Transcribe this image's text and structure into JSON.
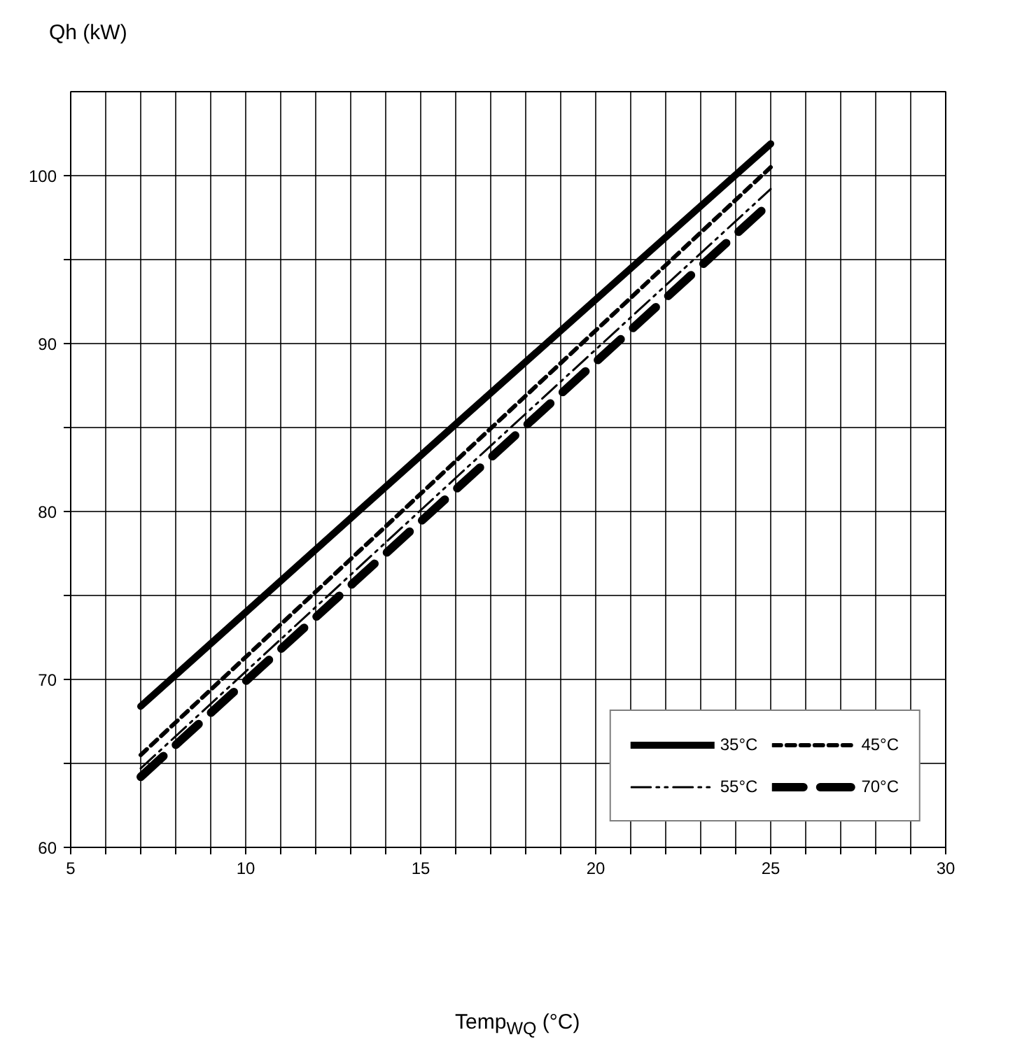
{
  "chart_data": {
    "type": "line",
    "annotations": [
      "Temp$_{WQ}$ (°C)"
    ],
    "ylabel": "Qh (kW)",
    "x": [
      7,
      16,
      25
    ],
    "series": [
      {
        "name": "35°C",
        "color": "#000000",
        "line_style": "solid",
        "values": [
          68.4,
          85.2,
          101.9
        ]
      },
      {
        "name": "45°C",
        "color": "#000000",
        "line_style": "dashed",
        "values": [
          65.5,
          83.0,
          100.5
        ]
      },
      {
        "name": "55°C",
        "color": "#000000",
        "line_style": "dashdotdot",
        "values": [
          64.7,
          82.0,
          99.2
        ]
      },
      {
        "name": "70°C",
        "color": "#000000",
        "line_style": "longdash",
        "values": [
          64.2,
          81.3,
          98.4
        ]
      }
    ],
    "xlim": [
      5,
      30
    ],
    "xticks": [
      5,
      {
        "value": 6,
        "label": null
      },
      {
        "value": 7,
        "label": null
      },
      {
        "value": 8,
        "label": null
      },
      {
        "value": 9,
        "label": null
      },
      10,
      {
        "value": 11,
        "label": null
      },
      {
        "value": 12,
        "label": null
      },
      {
        "value": 13,
        "label": null
      },
      {
        "value": 14,
        "label": null
      },
      15,
      {
        "value": 16,
        "label": null
      },
      {
        "value": 17,
        "label": null
      },
      {
        "value": 18,
        "label": null
      },
      {
        "value": 19,
        "label": null
      },
      20,
      {
        "value": 21,
        "label": null
      },
      {
        "value": 22,
        "label": null
      },
      {
        "value": 23,
        "label": null
      },
      {
        "value": 24,
        "label": null
      },
      25,
      {
        "value": 26,
        "label": null
      },
      {
        "value": 27,
        "label": null
      },
      {
        "value": 28,
        "label": null
      },
      {
        "value": 29,
        "label": null
      },
      30
    ],
    "ylim": [
      60,
      105
    ],
    "yticks": [
      60,
      {
        "value": 65,
        "label": null
      },
      70,
      {
        "value": 75,
        "label": null
      },
      80,
      {
        "value": 85,
        "label": null
      },
      90,
      {
        "value": 95,
        "label": null
      },
      100
    ],
    "grid": true,
    "legend": "bottom right",
    "marker": "none"
  }
}
